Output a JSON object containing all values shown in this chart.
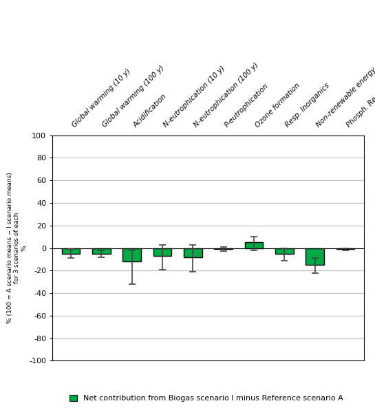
{
  "categories": [
    "Global warming (10 y)",
    "Global warming (100 y)",
    "Acidification",
    "N-eutrophication (10 y)",
    "N-eutrophication (100 y)",
    "P-eutrophication",
    "Ozone formation",
    "Resp. Inorganics",
    "Non-renewable energy",
    "Phosph. Resources"
  ],
  "bar_values": [
    -5,
    -5,
    -12,
    -7,
    -8,
    -1,
    5,
    -5,
    -15,
    -1
  ],
  "error_low": [
    4,
    3,
    20,
    12,
    13,
    2,
    7,
    6,
    7,
    1
  ],
  "error_high": [
    4,
    3,
    10,
    10,
    11,
    2,
    5,
    5,
    6,
    1
  ],
  "bar_color": "#00aa44",
  "bar_edge_color": "#000000",
  "ylim": [
    -100,
    100
  ],
  "yticks": [
    -100,
    -80,
    -60,
    -40,
    -20,
    0,
    20,
    40,
    60,
    80,
    100
  ],
  "ylabel_stacked": "% (100 = A scenario means - I scenario means)\nfor 3 scenarios of each\n%",
  "grid_color": "#bbbbbb",
  "legend_label": "Net contribution from Biogas scenario I minus Reference scenario A",
  "legend_color": "#00aa44",
  "background_color": "#ffffff",
  "bar_width": 0.6
}
